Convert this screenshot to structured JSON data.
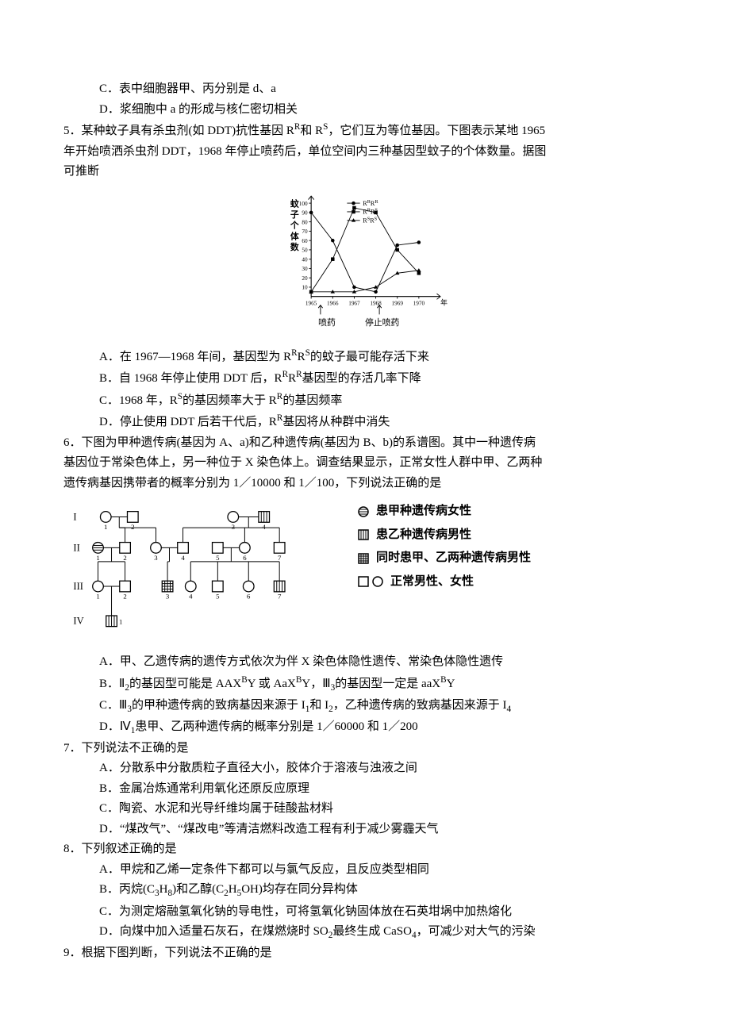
{
  "q4": {
    "opt_c": "C．表中细胞器甲、丙分别是 d、a",
    "opt_d": "D．浆细胞中 a 的形成与核仁密切相关"
  },
  "q5": {
    "num": "5．",
    "intro_a": "某种蚊子具有杀虫剂(如 DDT)抗性基因 R",
    "intro_b": "和 R",
    "intro_c": "，它们互为等位基因。下图表示某地 1965",
    "line2": "年开始喷洒杀虫剂 DDT，1968 年停止喷药后，单位空间内三种基因型蚊子的个体数量。据图",
    "line3": "可推断",
    "chart": {
      "ylabel": "蚊子个体数",
      "ymax": 100,
      "yticks": [
        10,
        20,
        30,
        40,
        50,
        60,
        70,
        80,
        90,
        100
      ],
      "xticks": [
        "1965",
        "1966",
        "1967",
        "1968",
        "1969",
        "1970"
      ],
      "xunit": "年",
      "label_spray": "喷药",
      "label_stop": "停止喷药",
      "series": [
        {
          "name": "RRRR",
          "label": "R",
          "sup": "R",
          "label2": "R",
          "sup2": "R",
          "marker": "circle",
          "points": [
            [
              0,
              90
            ],
            [
              1,
              60
            ],
            [
              2,
              10
            ],
            [
              3,
              5
            ],
            [
              4,
              55
            ],
            [
              5,
              58
            ]
          ]
        },
        {
          "name": "RRRS",
          "label": "R",
          "sup": "R",
          "label2": "R",
          "sup2": "S",
          "marker": "square",
          "points": [
            [
              0,
              5
            ],
            [
              1,
              40
            ],
            [
              2,
              95
            ],
            [
              3,
              90
            ],
            [
              4,
              50
            ],
            [
              5,
              25
            ]
          ]
        },
        {
          "name": "RSRS",
          "label": "R",
          "sup": "S",
          "label2": "R",
          "sup2": "S",
          "marker": "triangle",
          "points": [
            [
              0,
              5
            ],
            [
              1,
              5
            ],
            [
              2,
              5
            ],
            [
              3,
              10
            ],
            [
              4,
              25
            ],
            [
              5,
              28
            ]
          ]
        }
      ],
      "axis_color": "#000",
      "line_color": "#000",
      "bg": "#ffffff"
    },
    "opt_a_1": "A．在 1967—1968 年间，基因型为 R",
    "opt_a_2": "的蚊子最可能存活下来",
    "opt_b_1": "B．自 1968 年停止使用 DDT 后，R",
    "opt_b_2": "R",
    "opt_b_3": "基因型的存活几率下降",
    "opt_c_1": "C．1968 年，R",
    "opt_c_2": "的基因频率大于 R",
    "opt_c_3": "的基因频率",
    "opt_d_1": "D．停止使用 DDT 后若干代后，R",
    "opt_d_2": "基因将从种群中消失"
  },
  "q6": {
    "num": "6．",
    "line1": "下图为甲种遗传病(基因为 A、a)和乙种遗传病(基因为 B、b)的系谱图。其中一种遗传病",
    "line2": "基因位于常染色体上，另一种位于 X 染色体上。调查结果显示，正常女性人群中甲、乙两种",
    "line3": "遗传病基因携带者的概率分别为 1／10000 和 1／100，下列说法正确的是",
    "legend": {
      "female_a": "患甲种遗传病女性",
      "male_b": "患乙种遗传病男性",
      "male_both": "同时患甲、乙两种遗传病男性",
      "normal": "正常男性、女性"
    },
    "gen_labels": [
      "I",
      "II",
      "III",
      "IV"
    ],
    "opt_a": "A．甲、乙遗传病的遗传方式依次为伴 X 染色体隐性遗传、常染色体隐性遗传",
    "opt_b_1": "B．Ⅱ",
    "opt_b_2": "的基因型可能是 AAX",
    "opt_b_3": "Y 或 AaX",
    "opt_b_4": "Y，Ⅲ",
    "opt_b_5": "的基因型一定是 aaX",
    "opt_b_6": "Y",
    "opt_c_1": "C．Ⅲ",
    "opt_c_2": "的甲种遗传病的致病基因来源于 I",
    "opt_c_3": "和 I",
    "opt_c_4": "，乙种遗传病的致病基因来源于 I",
    "opt_d_1": "D．Ⅳ",
    "opt_d_2": "患甲、乙两种遗传病的概率分别是 1／60000 和 1／200"
  },
  "q7": {
    "num": "7．",
    "intro": "下列说法不正确的是",
    "opt_a": "A．分散系中分散质粒子直径大小，胶体介于溶液与浊液之间",
    "opt_b": "B．金属冶炼通常利用氧化还原反应原理",
    "opt_c": "C．陶瓷、水泥和光导纤维均属于硅酸盐材料",
    "opt_d": "D．“煤改气”、“煤改电”等清洁燃料改造工程有利于减少雾霾天气"
  },
  "q8": {
    "num": "8．",
    "intro": "下列叙述正确的是",
    "opt_a": "A．甲烷和乙烯一定条件下都可以与氯气反应，且反应类型相同",
    "opt_b_1": "B．丙烷(C",
    "opt_b_2": "H",
    "opt_b_3": ")和乙醇(C",
    "opt_b_4": "H",
    "opt_b_5": "OH)均存在同分异构体",
    "opt_c": "C．为测定熔融氢氧化钠的导电性，可将氢氧化钠固体放在石英坩埚中加热熔化",
    "opt_d_1": "D．向煤中加入适量石灰石，在煤燃烧时 SO",
    "opt_d_2": "最终生成 CaSO",
    "opt_d_3": "，可减少对大气的污染"
  },
  "q9": {
    "num": "9．",
    "intro": "根据下图判断，下列说法不正确的是"
  },
  "subs": {
    "n1": "1",
    "n2": "2",
    "n3": "3",
    "n4": "4",
    "n5": "5",
    "n8": "8",
    "R": "R",
    "S": "S",
    "B": "B"
  }
}
